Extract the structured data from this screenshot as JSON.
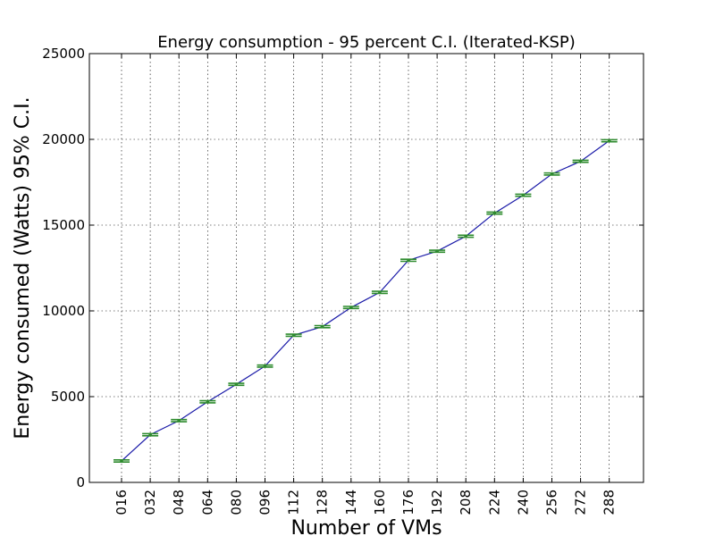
{
  "chart_data": {
    "type": "line",
    "title": "Energy consumption - 95 percent C.I. (Iterated-KSP)",
    "xlabel": "Number of VMs",
    "ylabel": "Energy consumed (Watts) 95% C.I.",
    "ylim": [
      0,
      25000
    ],
    "yticks": [
      "0",
      "5000",
      "10000",
      "15000",
      "20000",
      "25000"
    ],
    "ytick_values": [
      0,
      5000,
      10000,
      15000,
      20000,
      25000
    ],
    "categories": [
      "016",
      "032",
      "048",
      "064",
      "080",
      "096",
      "112",
      "128",
      "144",
      "160",
      "176",
      "192",
      "208",
      "224",
      "240",
      "256",
      "272",
      "288"
    ],
    "series": [
      {
        "values": [
          1250,
          2780,
          3600,
          4700,
          5720,
          6780,
          8580,
          9080,
          10200,
          11080,
          12950,
          13480,
          14350,
          15700,
          16740,
          17980,
          18720,
          19920
        ],
        "ci_halfwidth": [
          60,
          60,
          60,
          60,
          60,
          60,
          60,
          60,
          60,
          60,
          60,
          60,
          60,
          60,
          60,
          60,
          60,
          60
        ]
      }
    ],
    "grid": true,
    "colors": {
      "line": "#1a1aa8",
      "errorbar": "#2e8b2e"
    }
  }
}
